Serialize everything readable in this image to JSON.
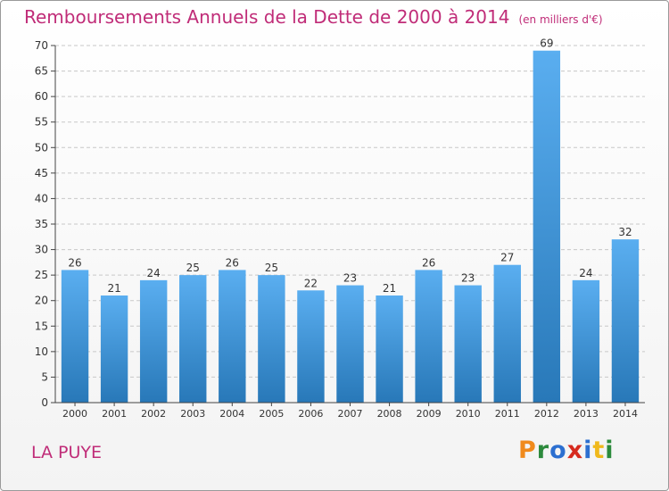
{
  "header": {
    "title": "Remboursements Annuels de la Dette de 2000 à 2014",
    "unit": "(en milliers d'€)"
  },
  "footer": {
    "place": "LA PUYE"
  },
  "logo": {
    "text": "Proxiti",
    "letters": [
      {
        "char": "P",
        "color": "#f08a1c"
      },
      {
        "char": "r",
        "color": "#2c8a3c"
      },
      {
        "char": "o",
        "color": "#2c6fd0"
      },
      {
        "char": "x",
        "color": "#d62a1e"
      },
      {
        "char": "i",
        "color": "#2c6fd0"
      },
      {
        "char": "t",
        "color": "#f0b91c"
      },
      {
        "char": "i",
        "color": "#2c8a3c"
      }
    ]
  },
  "colors": {
    "title": "#c02c78",
    "bar_light": "#5aaef0",
    "bar_dark": "#2878b8",
    "axis": "#444444",
    "grid": "#c8c8c8",
    "label": "#333333"
  },
  "chart_data": {
    "type": "bar",
    "title": "Remboursements Annuels de la Dette de 2000 à 2014",
    "subtitle": "(en milliers d'€)",
    "xlabel": "",
    "ylabel": "",
    "categories": [
      "2000",
      "2001",
      "2002",
      "2003",
      "2004",
      "2005",
      "2006",
      "2007",
      "2008",
      "2009",
      "2010",
      "2011",
      "2012",
      "2013",
      "2014"
    ],
    "values": [
      26,
      21,
      24,
      25,
      26,
      25,
      22,
      23,
      21,
      26,
      23,
      27,
      69,
      24,
      32
    ],
    "ylim": [
      0,
      70
    ],
    "yticks": [
      0,
      5,
      10,
      15,
      20,
      25,
      30,
      35,
      40,
      45,
      50,
      55,
      60,
      65,
      70
    ],
    "grid": "horizontal dashed",
    "legend": "none",
    "data_labels": true
  }
}
